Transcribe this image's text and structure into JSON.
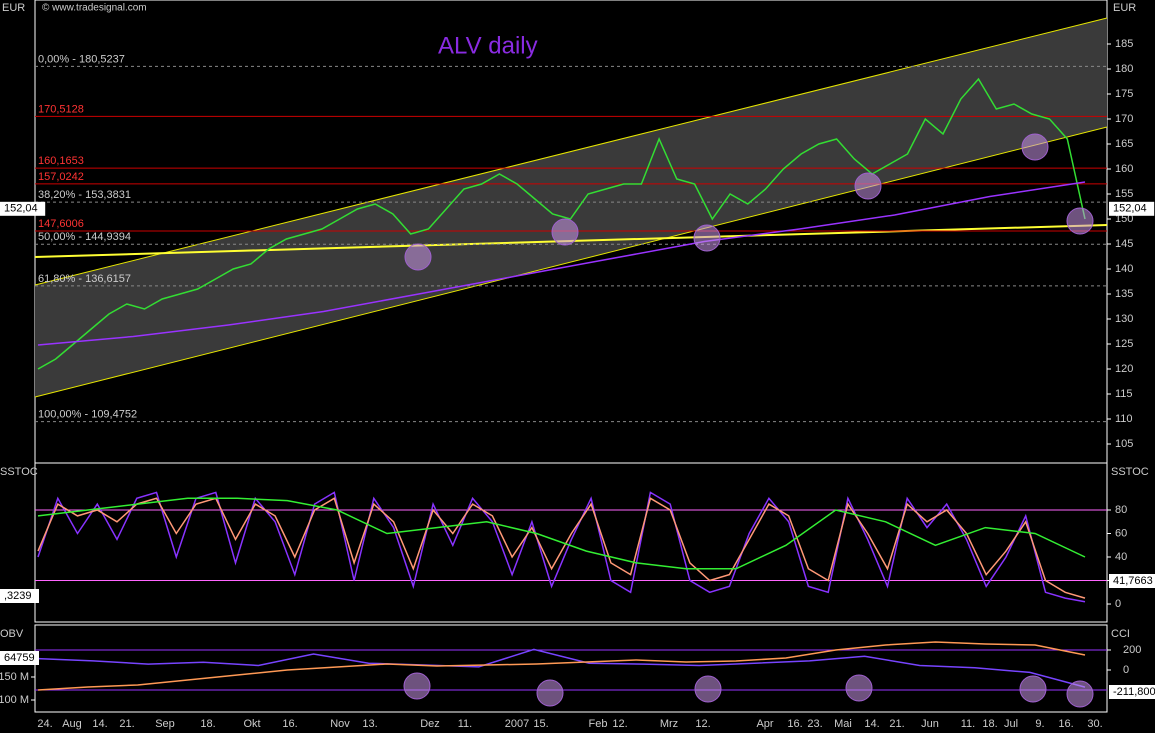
{
  "chart_data": [
    {
      "type": "line",
      "title": "ALV daily",
      "source": "© www.tradesignal.com",
      "y_label": "EUR",
      "ylim": [
        101.2,
        193.8
      ],
      "yticks": [
        105,
        110,
        115,
        120,
        125,
        130,
        135,
        140,
        145,
        150,
        155,
        160,
        165,
        170,
        175,
        180,
        185
      ],
      "series": [
        {
          "color": "#33dd33",
          "values": [
            120,
            122,
            125,
            128,
            131,
            133,
            132,
            134,
            135,
            136,
            138,
            140,
            141,
            144,
            146,
            147,
            148,
            150,
            152,
            153,
            151,
            147,
            148,
            152,
            156,
            157,
            159,
            157,
            154,
            151,
            150,
            155,
            156,
            157,
            157,
            166,
            158,
            157,
            150,
            155,
            153,
            156,
            160,
            163,
            165,
            166,
            162,
            159,
            161,
            163,
            170,
            167,
            174,
            178,
            172,
            173,
            171,
            170,
            166,
            150
          ]
        },
        {
          "color": "#9933ff",
          "values": [
            124.8,
            126.5,
            128.8,
            131.5,
            135,
            138.5,
            142,
            145.5,
            148,
            150.8,
            154.5,
            157.4
          ]
        }
      ],
      "trendlines": [
        {
          "color": "#e6e600",
          "values": [
            136.8,
            190.2
          ]
        },
        {
          "color": "#e6e600",
          "values": [
            114.4,
            168.4
          ]
        },
        {
          "color": "#ffff33",
          "values": [
            142.4,
            148.8
          ]
        }
      ],
      "levels": [
        {
          "value": 180.5237,
          "label": "0,00% - 180,5237",
          "color": "#888888"
        },
        {
          "value": 170.5128,
          "label": "170,5128",
          "color": "#cc0000"
        },
        {
          "value": 160.1653,
          "label": "160,1653",
          "color": "#cc0000"
        },
        {
          "value": 157.0242,
          "label": "157,0242",
          "color": "#cc0000"
        },
        {
          "value": 153.3831,
          "label": "38,20% - 153,3831",
          "color": "#888888"
        },
        {
          "value": 147.6006,
          "label": "147,6006",
          "color": "#cc0000"
        },
        {
          "value": 144.9394,
          "label": "50,00% - 144,9394",
          "color": "#888888"
        },
        {
          "value": 136.6157,
          "label": "61,80% - 136,6157",
          "color": "#888888"
        },
        {
          "value": 109.4752,
          "label": "100,00% - 109,4752",
          "color": "#888888"
        }
      ],
      "last": {
        "value": 152.04,
        "label": "152,04"
      }
    },
    {
      "type": "line",
      "title": "SSTOC",
      "ylim": [
        -15.3,
        120
      ],
      "yticks": [
        0,
        20,
        40,
        60,
        80
      ],
      "levels": [
        80,
        20
      ],
      "level_color": "#ff66ff",
      "series": [
        {
          "color": "#8833ff",
          "values": [
            40,
            90,
            60,
            85,
            55,
            90,
            95,
            40,
            90,
            95,
            35,
            90,
            70,
            25,
            85,
            95,
            20,
            90,
            65,
            15,
            85,
            50,
            90,
            70,
            25,
            70,
            15,
            55,
            90,
            20,
            10,
            95,
            85,
            20,
            10,
            15,
            60,
            90,
            70,
            15,
            10,
            90,
            55,
            15,
            90,
            65,
            85,
            55,
            15,
            40,
            75,
            10,
            5,
            2
          ]
        },
        {
          "color": "#ff9977",
          "values": [
            45,
            85,
            75,
            80,
            70,
            85,
            90,
            60,
            85,
            90,
            55,
            85,
            75,
            40,
            80,
            90,
            35,
            85,
            70,
            30,
            80,
            60,
            85,
            75,
            40,
            65,
            30,
            60,
            85,
            35,
            25,
            90,
            80,
            35,
            20,
            25,
            55,
            85,
            75,
            30,
            20,
            85,
            60,
            30,
            85,
            70,
            80,
            60,
            25,
            45,
            70,
            20,
            10,
            5
          ]
        },
        {
          "color": "#33ee33",
          "values": [
            75,
            80,
            85,
            90,
            90,
            88,
            80,
            60,
            65,
            70,
            60,
            45,
            35,
            30,
            30,
            50,
            80,
            70,
            50,
            65,
            60,
            40
          ]
        }
      ],
      "annotations": [
        "41,7663",
        ",3239"
      ]
    },
    {
      "type": "line",
      "title": "OBV",
      "y2_label": "CCI",
      "ylim": [
        73900000,
        263000000
      ],
      "yticks": [
        {
          "value": 100000000,
          "label": "100 M"
        },
        {
          "value": 150000000,
          "label": "150 M"
        }
      ],
      "y2lim": [
        -420,
        450
      ],
      "y2ticks": [
        0,
        200
      ],
      "levels": [
        200,
        -200
      ],
      "level_color": "#9933ff",
      "series": [
        {
          "color": "#7744ff",
          "values": [
            190000000,
            185000000,
            178000000,
            182000000,
            175000000,
            200000000,
            180000000,
            176000000,
            172000000,
            210000000,
            180000000,
            178000000,
            175000000,
            180000000,
            185000000,
            195000000,
            175000000,
            170000000,
            160000000,
            128000000
          ]
        },
        {
          "color": "#ff9955",
          "values": [
            -200,
            -170,
            -150,
            -100,
            -50,
            0,
            30,
            60,
            40,
            50,
            60,
            80,
            100,
            80,
            90,
            120,
            200,
            250,
            280,
            260,
            250,
            150
          ],
          "axis": "y2"
        }
      ],
      "annotations": [
        "64759",
        "-211,800"
      ]
    }
  ],
  "time_axis": [
    "24.",
    "Aug",
    "14.",
    "21.",
    "Sep",
    "18.",
    "Okt",
    "16.",
    "Nov",
    "13.",
    "Dez",
    "11.",
    "2007",
    "15.",
    "Feb",
    "12.",
    "Mrz",
    "12.",
    "Apr",
    "16.",
    "23.",
    "Mai",
    "14.",
    "21.",
    "Jun",
    "11.",
    "18.",
    "Jul",
    "9.",
    "16.",
    "30."
  ]
}
